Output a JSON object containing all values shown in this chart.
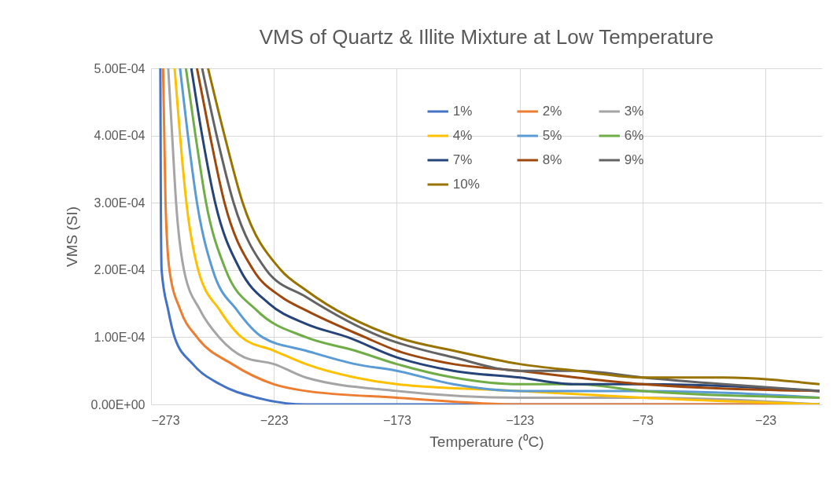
{
  "chart_data": {
    "type": "line",
    "title": "VMS of Quartz & Illite Mixture at Low Temperature",
    "xlabel": "Temperature (⁰C)",
    "ylabel": "VMS (SI)",
    "xlim": [
      -273,
      0
    ],
    "xticks": [
      -273,
      -223,
      -173,
      -123,
      -73,
      -23
    ],
    "ylim": [
      0,
      0.0005
    ],
    "yticks": [
      {
        "value": 0,
        "label": "0.00E+00"
      },
      {
        "value": 0.0001,
        "label": "1.00E-04"
      },
      {
        "value": 0.0002,
        "label": "2.00E-04"
      },
      {
        "value": 0.0003,
        "label": "3.00E-04"
      },
      {
        "value": 0.0004,
        "label": "4.00E-04"
      },
      {
        "value": 0.0005,
        "label": "5.00E-04"
      }
    ],
    "grid": true,
    "legend": "top right",
    "marker": "none",
    "line_style": "solid",
    "series": [
      {
        "name": "1%",
        "color": "#4472c4",
        "x": [
          -269.2,
          -269,
          -268.7,
          -266,
          -263.4,
          -256,
          -245,
          -230,
          -210,
          -190,
          -1
        ],
        "values": [
          0.0005,
          0.0003,
          0.0002,
          0.00014,
          0.0001,
          6e-05,
          3e-05,
          1e-05,
          0,
          0,
          0
        ]
      },
      {
        "name": "2%",
        "color": "#ed7d31",
        "x": [
          -268.1,
          -267.6,
          -267.1,
          -265.5,
          -261,
          -254.3,
          -240,
          -223,
          -210,
          -173,
          -123,
          -73,
          -1
        ],
        "values": [
          0.0005,
          0.0004,
          0.0003,
          0.0002,
          0.00014,
          0.0001,
          6e-05,
          3e-05,
          2e-05,
          1e-05,
          0,
          0,
          0
        ]
      },
      {
        "name": "3%",
        "color": "#a5a5a5",
        "x": [
          -266,
          -264.4,
          -262.8,
          -259.6,
          -253,
          -245.3,
          -235,
          -223,
          -210,
          -173,
          -123,
          -73,
          -1
        ],
        "values": [
          0.0005,
          0.0004,
          0.0003,
          0.0002,
          0.00014,
          0.0001,
          7e-05,
          6e-05,
          4e-05,
          2e-05,
          1e-05,
          1e-05,
          0
        ]
      },
      {
        "name": "4%",
        "color": "#ffc000",
        "x": [
          -263.4,
          -261.2,
          -258.6,
          -253.8,
          -245,
          -236.2,
          -223,
          -210,
          -190,
          -173,
          -123,
          -73,
          -1
        ],
        "values": [
          0.0005,
          0.0004,
          0.0003,
          0.0002,
          0.00014,
          0.0001,
          8e-05,
          6e-05,
          4e-05,
          3e-05,
          2e-05,
          1e-05,
          0
        ]
      },
      {
        "name": "5%",
        "color": "#5b9bd5",
        "x": [
          -261.2,
          -258,
          -254.3,
          -247.9,
          -238,
          -227.7,
          -210,
          -190,
          -173,
          -150,
          -123,
          -100,
          -73,
          -1
        ],
        "values": [
          0.0005,
          0.0004,
          0.0003,
          0.0002,
          0.00014,
          0.0001,
          8e-05,
          6e-05,
          5e-05,
          3e-05,
          2e-05,
          2e-05,
          2e-05,
          1e-05
        ]
      },
      {
        "name": "6%",
        "color": "#70ad47",
        "x": [
          -258.8,
          -254.9,
          -250.6,
          -242.6,
          -230,
          -210,
          -190,
          -173,
          -150,
          -123,
          -100,
          -73,
          -1
        ],
        "values": [
          0.0005,
          0.0004,
          0.0003,
          0.0002,
          0.00014,
          0.0001,
          8e-05,
          6e-05,
          4e-05,
          3e-05,
          3e-05,
          2e-05,
          1e-05
        ]
      },
      {
        "name": "7%",
        "color": "#264478",
        "x": [
          -256.6,
          -252.2,
          -246.9,
          -236.7,
          -225,
          -210,
          -193,
          -173,
          -150,
          -123,
          -100,
          -73,
          -1
        ],
        "values": [
          0.0005,
          0.0004,
          0.0003,
          0.0002,
          0.00015,
          0.00012,
          0.0001,
          7e-05,
          5e-05,
          4e-05,
          3e-05,
          3e-05,
          2e-05
        ]
      },
      {
        "name": "8%",
        "color": "#9e480e",
        "x": [
          -254.3,
          -249,
          -243.1,
          -231.4,
          -220,
          -210,
          -186,
          -173,
          -150,
          -123,
          -100,
          -73,
          -1
        ],
        "values": [
          0.0005,
          0.0004,
          0.0003,
          0.0002,
          0.00016,
          0.00014,
          0.0001,
          8e-05,
          6e-05,
          5e-05,
          4e-05,
          3e-05,
          2e-05
        ]
      },
      {
        "name": "9%",
        "color": "#636363",
        "x": [
          -252.2,
          -246.3,
          -239.4,
          -226.1,
          -210,
          -179,
          -150,
          -123,
          -100,
          -73,
          -40,
          -1
        ],
        "values": [
          0.0005,
          0.0004,
          0.0003,
          0.0002,
          0.00016,
          0.0001,
          7e-05,
          5e-05,
          5e-05,
          4e-05,
          3e-05,
          2e-05
        ]
      },
      {
        "name": "10%",
        "color": "#997300",
        "x": [
          -249.8,
          -243.1,
          -235.7,
          -220.2,
          -210,
          -173,
          -150,
          -123,
          -100,
          -73,
          -40,
          -1
        ],
        "values": [
          0.0005,
          0.0004,
          0.0003,
          0.0002,
          0.00017,
          0.0001,
          8e-05,
          6e-05,
          5e-05,
          4e-05,
          4e-05,
          3e-05
        ]
      }
    ]
  }
}
